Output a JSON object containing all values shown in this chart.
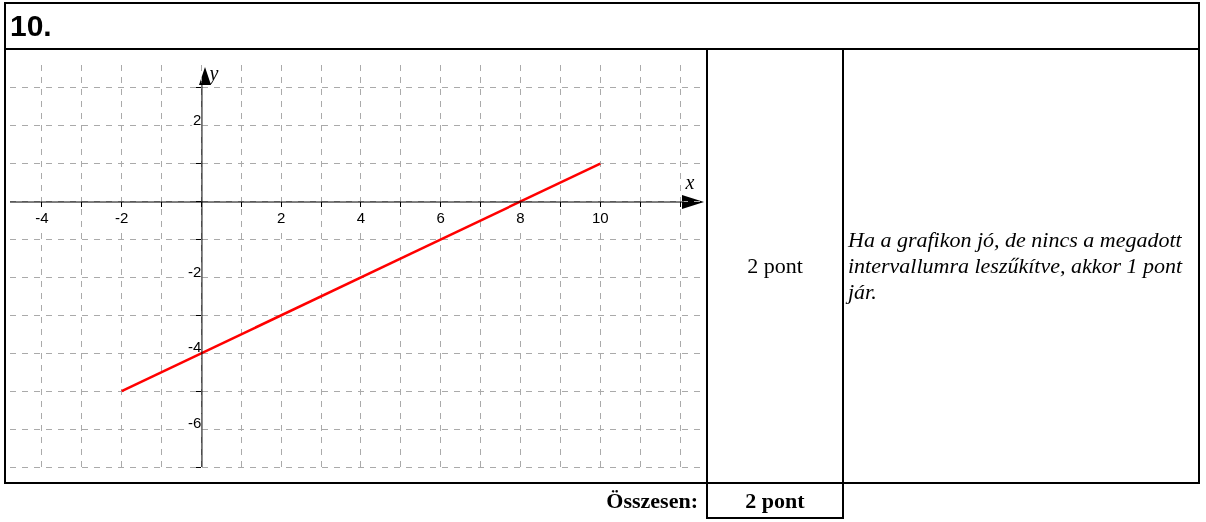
{
  "chart_data": {
    "type": "line",
    "xlabel": "x",
    "ylabel": "y",
    "series": [
      {
        "color": "#ff0000",
        "x": [
          -2,
          10
        ],
        "values": [
          -5,
          1
        ]
      }
    ],
    "xlim": [
      -4.8,
      12.6
    ],
    "ylim": [
      -7,
      3.6
    ],
    "xticks": [
      {
        "value": -4,
        "label": "-4"
      },
      {
        "value": -3,
        "label": null
      },
      {
        "value": -2,
        "label": "-2"
      },
      {
        "value": -1,
        "label": null
      },
      {
        "value": 0,
        "label": null
      },
      {
        "value": 1,
        "label": null
      },
      {
        "value": 2,
        "label": "2"
      },
      {
        "value": 3,
        "label": null
      },
      {
        "value": 4,
        "label": "4"
      },
      {
        "value": 5,
        "label": null
      },
      {
        "value": 6,
        "label": "6"
      },
      {
        "value": 7,
        "label": null
      },
      {
        "value": 8,
        "label": "8"
      },
      {
        "value": 9,
        "label": null
      },
      {
        "value": 10,
        "label": "10"
      },
      {
        "value": 11,
        "label": null
      },
      {
        "value": 12,
        "label": null
      }
    ],
    "yticks": [
      {
        "value": -7,
        "label": null
      },
      {
        "value": -6,
        "label": "-6"
      },
      {
        "value": -5,
        "label": null
      },
      {
        "value": -4,
        "label": "-4"
      },
      {
        "value": -3,
        "label": null
      },
      {
        "value": -2,
        "label": "-2"
      },
      {
        "value": -1,
        "label": null
      },
      {
        "value": 0,
        "label": null
      },
      {
        "value": 1,
        "label": null
      },
      {
        "value": 2,
        "label": "2"
      },
      {
        "value": 3,
        "label": null
      }
    ],
    "grid": true,
    "marker": "none",
    "line_style": "solid",
    "annotations": [
      "10.",
      "2 pont",
      "Ha a grafikon jó, de nincs a megadott intervallumra leszűkítve, akkor 1 pont jár.",
      "Összesen:",
      "2 pont"
    ]
  }
}
